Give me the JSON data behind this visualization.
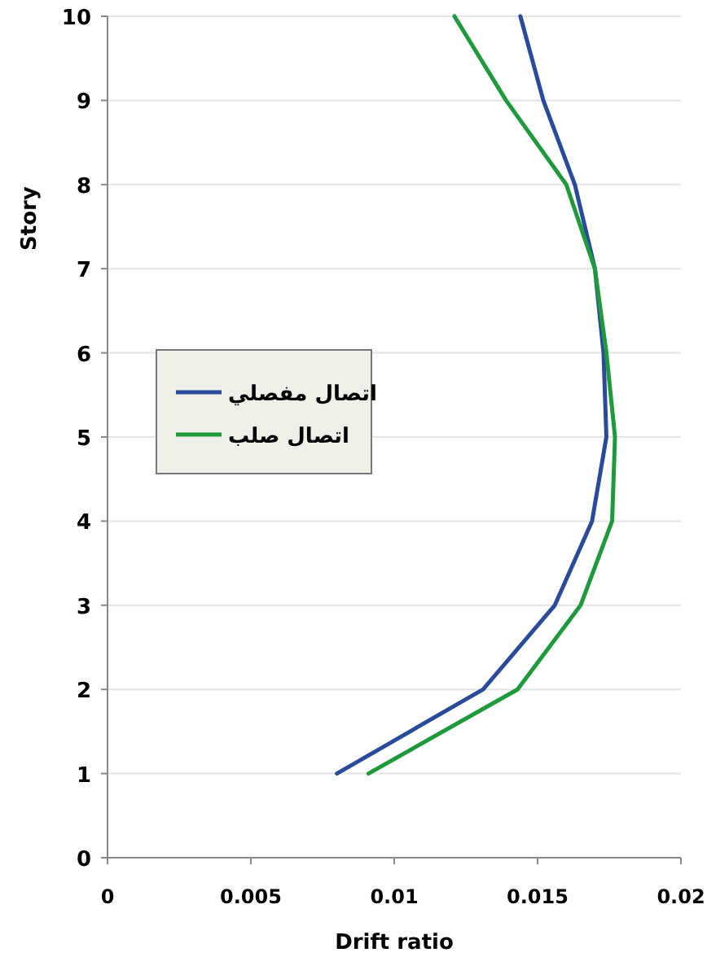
{
  "chart_data": {
    "type": "line",
    "xlabel": "Drift ratio",
    "ylabel": "Story",
    "xlim": [
      0,
      0.02
    ],
    "xticks": [
      0,
      0.005,
      0.01,
      0.015,
      0.02
    ],
    "ylim": [
      0,
      10
    ],
    "yticks": [
      0,
      1,
      2,
      3,
      4,
      5,
      6,
      7,
      8,
      9,
      10
    ],
    "grid": "y",
    "legend": "left",
    "marker": "none",
    "line_style": "solid",
    "series": [
      {
        "name": "اتصال مفصلي",
        "color": "#2a4a9a",
        "x": [
          0.008,
          0.0131,
          0.0156,
          0.0169,
          0.0174,
          0.0173,
          0.017,
          0.0163,
          0.0152,
          0.0144
        ],
        "values": [
          1,
          2,
          3,
          4,
          5,
          6,
          7,
          8,
          9,
          10
        ]
      },
      {
        "name": "اتصال صلب",
        "color": "#1e9a3c",
        "x": [
          0.0091,
          0.0143,
          0.0165,
          0.0176,
          0.0177,
          0.0174,
          0.017,
          0.016,
          0.0139,
          0.0121
        ],
        "values": [
          1,
          2,
          3,
          4,
          5,
          6,
          7,
          8,
          9,
          10
        ]
      }
    ]
  }
}
